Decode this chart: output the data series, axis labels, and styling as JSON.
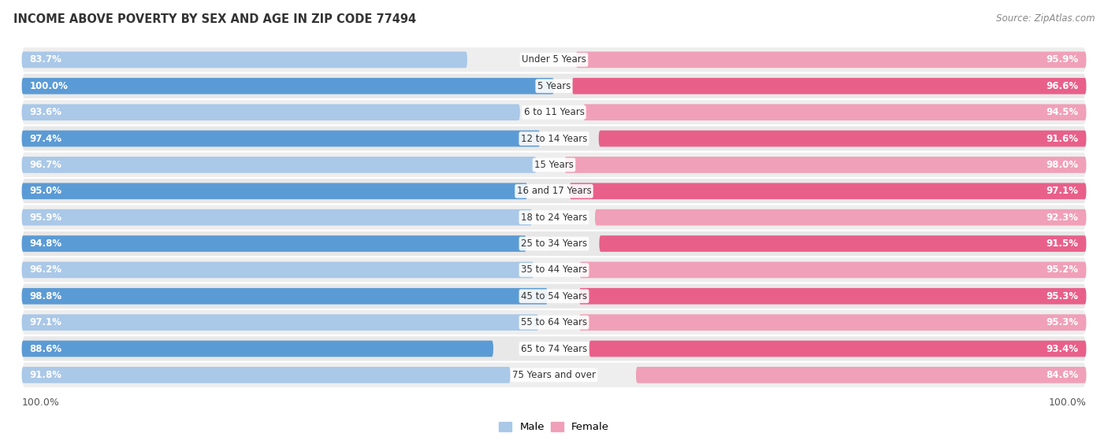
{
  "title": "INCOME ABOVE POVERTY BY SEX AND AGE IN ZIP CODE 77494",
  "source": "Source: ZipAtlas.com",
  "categories": [
    "Under 5 Years",
    "5 Years",
    "6 to 11 Years",
    "12 to 14 Years",
    "15 Years",
    "16 and 17 Years",
    "18 to 24 Years",
    "25 to 34 Years",
    "35 to 44 Years",
    "45 to 54 Years",
    "55 to 64 Years",
    "65 to 74 Years",
    "75 Years and over"
  ],
  "male_values": [
    83.7,
    100.0,
    93.6,
    97.4,
    96.7,
    95.0,
    95.9,
    94.8,
    96.2,
    98.8,
    97.1,
    88.6,
    91.8
  ],
  "female_values": [
    95.9,
    96.6,
    94.5,
    91.6,
    98.0,
    97.1,
    92.3,
    91.5,
    95.2,
    95.3,
    95.3,
    93.4,
    84.6
  ],
  "male_color_light": "#aac8e8",
  "male_color_dark": "#5b9bd5",
  "female_color_light": "#f0a0b8",
  "female_color_dark": "#e8608a",
  "bg_row_light": "#eeeeee",
  "bg_row_dark": "#e0e0e0",
  "bg_color": "#ffffff",
  "value_text_color": "#ffffff",
  "cat_text_color": "#333333",
  "axis_label": "100.0%",
  "legend_male": "Male",
  "legend_female": "Female"
}
